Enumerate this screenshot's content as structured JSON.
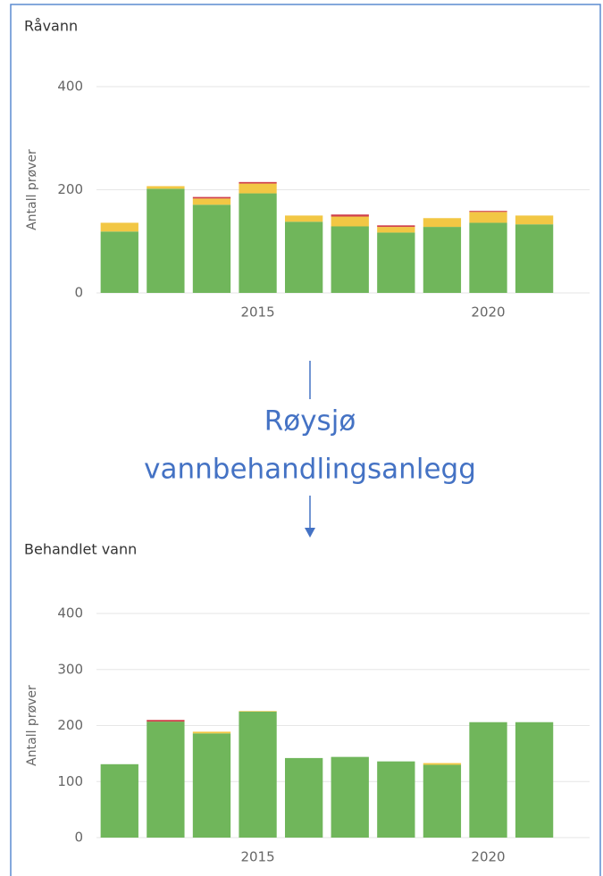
{
  "chart_data": [
    {
      "type": "stacked_bar",
      "title": "Råvann",
      "ylabel": "Antall prøver",
      "x": [
        2012,
        2013,
        2014,
        2015,
        2016,
        2017,
        2018,
        2019,
        2020,
        2021
      ],
      "series": [
        {
          "color": "#70b65b",
          "values": [
            119,
            202,
            171,
            193,
            138,
            129,
            117,
            128,
            136,
            133
          ]
        },
        {
          "color": "#f2c744",
          "values": [
            17,
            5,
            12,
            19,
            12,
            19,
            11,
            17,
            21,
            17
          ]
        },
        {
          "color": "#d0404a",
          "values": [
            0,
            0,
            3,
            3,
            0,
            4,
            3,
            0,
            2,
            0
          ]
        }
      ],
      "xlim": [
        2011.5,
        2022.2
      ],
      "xticks": [
        2015,
        2020
      ],
      "ylim": [
        0,
        400
      ],
      "yticks": [
        0,
        200,
        400
      ],
      "grid": true
    },
    {
      "type": "stacked_bar",
      "title": "Behandlet vann",
      "ylabel": "Antall prøver",
      "x": [
        2012,
        2013,
        2014,
        2015,
        2016,
        2017,
        2018,
        2019,
        2020,
        2021
      ],
      "series": [
        {
          "color": "#70b65b",
          "values": [
            131,
            207,
            186,
            225,
            142,
            144,
            136,
            130,
            206,
            206
          ]
        },
        {
          "color": "#f2c744",
          "values": [
            0,
            0,
            3,
            1,
            0,
            0,
            0,
            3,
            0,
            0
          ]
        },
        {
          "color": "#d0404a",
          "values": [
            0,
            3,
            0,
            0,
            0,
            0,
            0,
            0,
            0,
            0
          ]
        }
      ],
      "xlim": [
        2011.5,
        2022.2
      ],
      "xticks": [
        2015,
        2020
      ],
      "ylim": [
        0,
        400
      ],
      "yticks": [
        0,
        100,
        200,
        300,
        400
      ],
      "grid": true
    }
  ],
  "diagram": {
    "lines": [
      "Røysjø",
      "vannbehandlingsanlegg"
    ]
  }
}
